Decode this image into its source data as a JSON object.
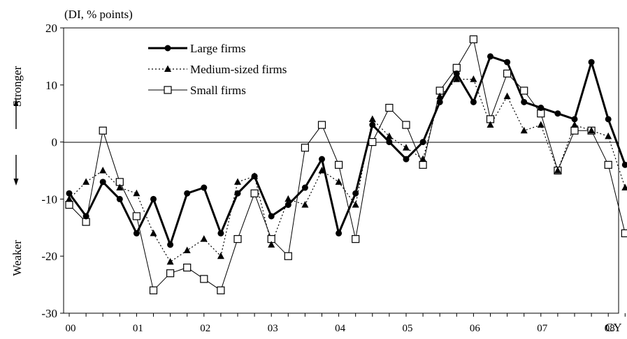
{
  "chart_data": {
    "type": "line",
    "unit_label": "(DI, % points)",
    "direction_labels": {
      "up": "Stronger",
      "down": "Weaker"
    },
    "xlabel": "CY",
    "ylim": [
      -30,
      20
    ],
    "yticks": [
      20,
      10,
      0,
      -10,
      -20,
      -30
    ],
    "year_labels": [
      "00",
      "01",
      "02",
      "03",
      "04",
      "05",
      "06",
      "07",
      "08"
    ],
    "x_start_year": 2000,
    "legend_position": "top-left",
    "series": [
      {
        "name": "Large firms",
        "marker": "filled-circle",
        "line": "thick-solid",
        "values": [
          -9,
          -13,
          -7,
          -10,
          -16,
          -10,
          -18,
          -9,
          -8,
          -16,
          -9,
          -6,
          -13,
          -11,
          -8,
          -3,
          -16,
          -9,
          3,
          0,
          -3,
          0,
          7,
          12,
          7,
          15,
          14,
          7,
          6,
          5,
          4,
          14,
          4,
          -4
        ]
      },
      {
        "name": "Medium-sized firms",
        "marker": "filled-triangle",
        "line": "dotted",
        "values": [
          -10,
          -7,
          -5,
          -8,
          -9,
          -16,
          -21,
          -19,
          -17,
          -20,
          -7,
          -6,
          -18,
          -10,
          -11,
          -5,
          -7,
          -11,
          4,
          1,
          -1,
          -3,
          8,
          11,
          11,
          3,
          8,
          2,
          3,
          -5,
          3,
          2,
          1,
          -8
        ]
      },
      {
        "name": "Small firms",
        "marker": "open-square",
        "line": "thin-solid",
        "values": [
          -11,
          -14,
          2,
          -7,
          -13,
          -26,
          -23,
          -22,
          -24,
          -26,
          -17,
          -9,
          -17,
          -20,
          -1,
          3,
          -4,
          -17,
          0,
          6,
          3,
          -4,
          9,
          13,
          18,
          4,
          12,
          9,
          5,
          -5,
          2,
          2,
          -4,
          -16
        ]
      }
    ]
  }
}
